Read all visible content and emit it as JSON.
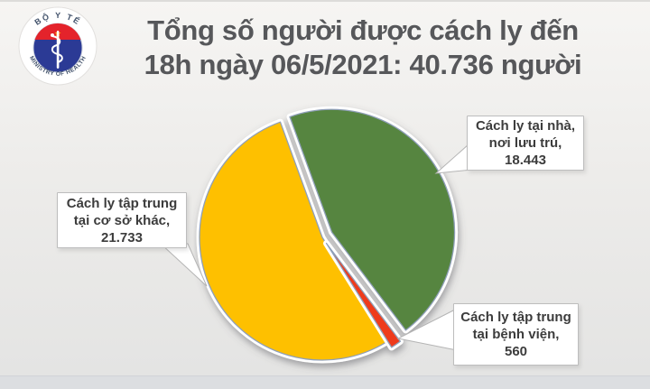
{
  "header": {
    "title_line1": "Tổng số người được cách ly đến",
    "title_line2": "18h ngày 06/5/2021: 40.736 người",
    "logo": {
      "top_text": "BỘ Y TẾ",
      "bottom_text": "MINISTRY OF HEALTH"
    }
  },
  "chart_data": {
    "type": "pie",
    "title": "Tổng số người được cách ly đến 18h ngày 06/5/2021: 40.736 người",
    "total": 40736,
    "start_angle_deg": -20,
    "legend_position": "callout-boxes",
    "slices": [
      {
        "key": "home",
        "label": "Cách ly tại nhà, nơi lưu trú",
        "value": 18443,
        "display": "18.443",
        "color": "#578540"
      },
      {
        "key": "hospital",
        "label": "Cách ly tập trung tại bệnh viện",
        "value": 560,
        "display": "560",
        "color": "#ee3a1a"
      },
      {
        "key": "other",
        "label": "Cách ly tập trung tại cơ sở khác",
        "value": 21733,
        "display": "21.733",
        "color": "#fec000"
      }
    ]
  },
  "callouts": {
    "home": {
      "line1": "Cách ly tại nhà,",
      "line2": "nơi lưu trú,",
      "value": "18.443"
    },
    "other": {
      "line1": "Cách ly tập trung",
      "line2": "tại cơ sở khác,",
      "value": "21.733"
    },
    "hospital": {
      "line1": "Cách ly tập trung",
      "line2": "tại bệnh viện,",
      "value": "560"
    }
  },
  "colors": {
    "slice_green": "#578540",
    "slice_yellow": "#fec000",
    "slice_red": "#ee3a1a",
    "slice_border": "#8f9fb8",
    "title_text": "#56575a",
    "label_text": "#3c3c3c",
    "background": "#edecea",
    "logo_blue": "#2b3a95",
    "logo_red": "#e4232b",
    "logo_star": "#ffc400"
  }
}
